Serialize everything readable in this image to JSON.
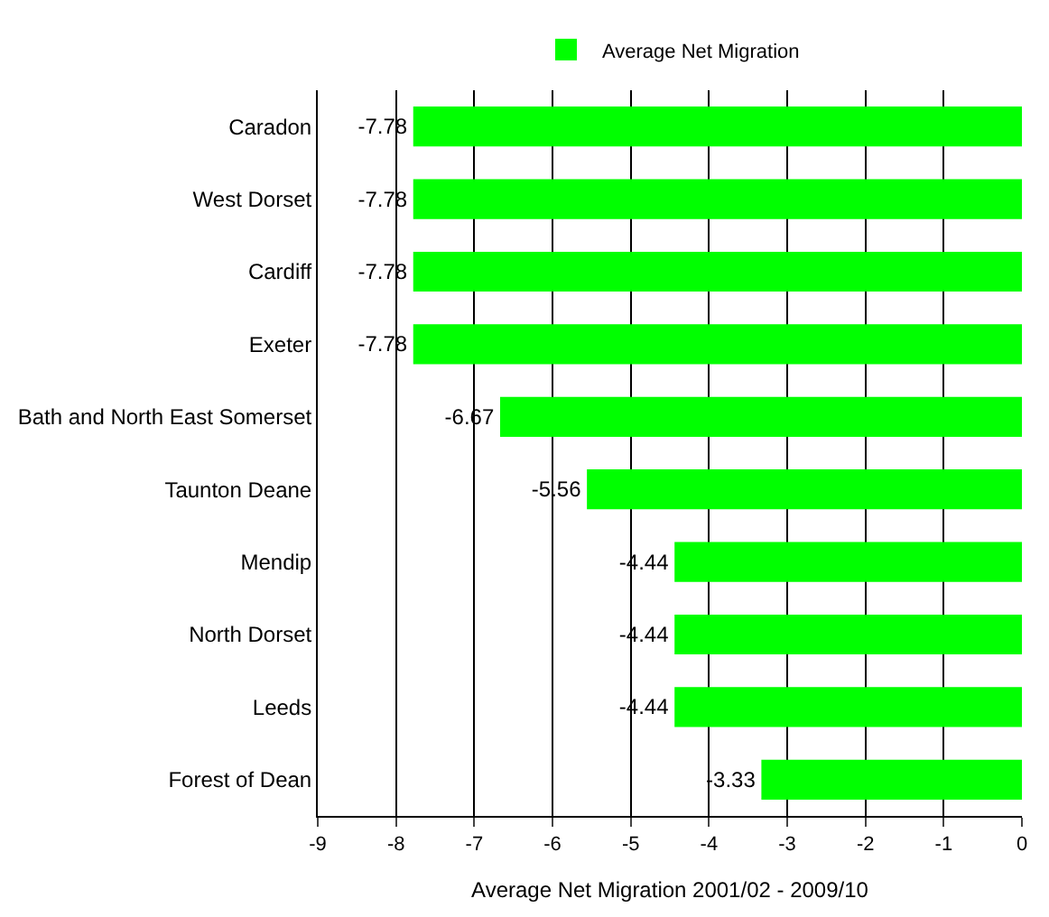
{
  "chart_data": {
    "type": "bar",
    "orientation": "horizontal",
    "xlabel": "Average Net Migration 2001/02 - 2009/10",
    "categories": [
      "Caradon",
      "West Dorset",
      "Cardiff",
      "Exeter",
      "Bath and North East Somerset",
      "Taunton Deane",
      "Mendip",
      "North Dorset",
      "Leeds",
      "Forest of Dean"
    ],
    "series": [
      {
        "name": "Average Net Migration",
        "color": "#00ff00",
        "values": [
          -7.78,
          -7.78,
          -7.78,
          -7.78,
          -6.67,
          -5.56,
          -4.44,
          -4.44,
          -4.44,
          -3.33
        ]
      }
    ],
    "xlim": [
      -9,
      0
    ],
    "xticks": [
      -9,
      -8,
      -7,
      -6,
      -5,
      -4,
      -3,
      -2,
      -1,
      0
    ],
    "data_labels": true,
    "grid": "x",
    "legend": "top"
  }
}
